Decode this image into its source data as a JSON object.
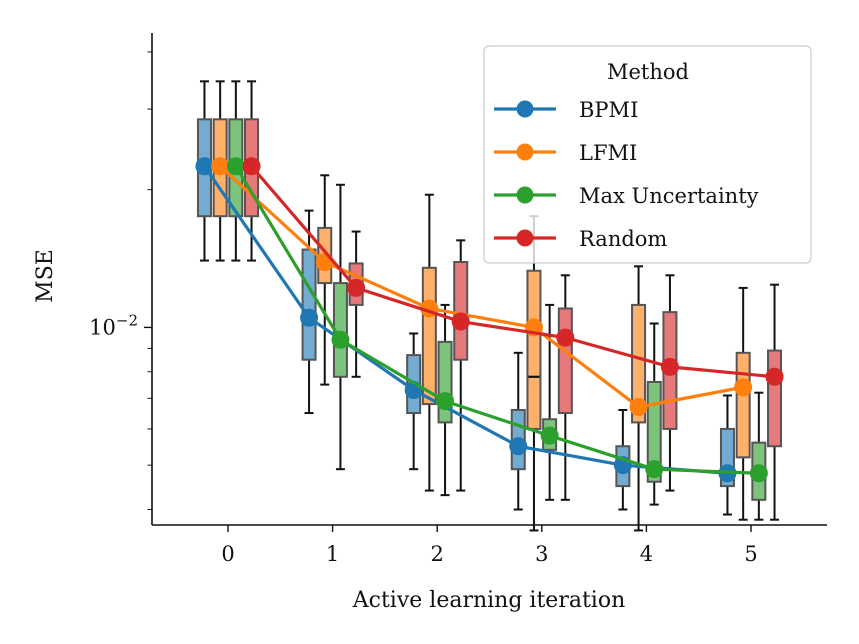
{
  "chart_data": {
    "type": "box",
    "title": "",
    "xlabel": "Active learning iteration",
    "ylabel": "MSE",
    "yscale": "log",
    "ylim": [
      0.0037,
      0.044
    ],
    "x": [
      0,
      1,
      2,
      3,
      4,
      5
    ],
    "x_tick_labels": [
      "0",
      "1",
      "2",
      "3",
      "4",
      "5"
    ],
    "y_tick_label": "10^-2",
    "y_tick_value": 0.01,
    "grid": false,
    "legend": {
      "title": "Method",
      "placement": "top-right"
    },
    "series": [
      {
        "name": "BPMI",
        "color": "#1f77b4",
        "mean": [
          0.0225,
          0.0105,
          0.0073,
          0.0055,
          0.005,
          0.0048
        ],
        "box": [
          {
            "q1": 0.0175,
            "median": 0.0225,
            "q3": 0.0285,
            "whisker_low": 0.014,
            "whisker_high": 0.0345
          },
          {
            "q1": 0.0085,
            "median": 0.0104,
            "q3": 0.0148,
            "whisker_low": 0.0065,
            "whisker_high": 0.018
          },
          {
            "q1": 0.0065,
            "median": 0.0074,
            "q3": 0.0087,
            "whisker_low": 0.0049,
            "whisker_high": 0.0097
          },
          {
            "q1": 0.0049,
            "median": 0.0056,
            "q3": 0.0066,
            "whisker_low": 0.004,
            "whisker_high": 0.0088
          },
          {
            "q1": 0.0045,
            "median": 0.005,
            "q3": 0.0055,
            "whisker_low": 0.004,
            "whisker_high": 0.0066
          },
          {
            "q1": 0.0045,
            "median": 0.0048,
            "q3": 0.006,
            "whisker_low": 0.0039,
            "whisker_high": 0.0071
          }
        ]
      },
      {
        "name": "LFMI",
        "color": "#ff7f0e",
        "mean": [
          0.0225,
          0.0139,
          0.011,
          0.01,
          0.0067,
          0.0074
        ],
        "box": [
          {
            "q1": 0.0175,
            "median": 0.0225,
            "q3": 0.0285,
            "whisker_low": 0.014,
            "whisker_high": 0.0345
          },
          {
            "q1": 0.0125,
            "median": 0.014,
            "q3": 0.0165,
            "whisker_low": 0.0075,
            "whisker_high": 0.0215
          },
          {
            "q1": 0.0068,
            "median": 0.011,
            "q3": 0.0135,
            "whisker_low": 0.0044,
            "whisker_high": 0.0195
          },
          {
            "q1": 0.006,
            "median": 0.0078,
            "q3": 0.0133,
            "whisker_low": 0.0036,
            "whisker_high": 0.0175
          },
          {
            "q1": 0.0062,
            "median": 0.0067,
            "q3": 0.0112,
            "whisker_low": 0.0036,
            "whisker_high": 0.0136
          },
          {
            "q1": 0.0052,
            "median": 0.0074,
            "q3": 0.0088,
            "whisker_low": 0.0038,
            "whisker_high": 0.0122
          }
        ]
      },
      {
        "name": "Max Uncertainty",
        "color": "#2ca02c",
        "mean": [
          0.0225,
          0.0094,
          0.0069,
          0.0058,
          0.0049,
          0.0048
        ],
        "box": [
          {
            "q1": 0.0175,
            "median": 0.0225,
            "q3": 0.0285,
            "whisker_low": 0.014,
            "whisker_high": 0.0345
          },
          {
            "q1": 0.0078,
            "median": 0.0094,
            "q3": 0.0125,
            "whisker_low": 0.0049,
            "whisker_high": 0.0205
          },
          {
            "q1": 0.0062,
            "median": 0.0069,
            "q3": 0.0093,
            "whisker_low": 0.0043,
            "whisker_high": 0.0112
          },
          {
            "q1": 0.0054,
            "median": 0.0058,
            "q3": 0.0063,
            "whisker_low": 0.0042,
            "whisker_high": 0.0112
          },
          {
            "q1": 0.0046,
            "median": 0.0049,
            "q3": 0.0076,
            "whisker_low": 0.0041,
            "whisker_high": 0.0102
          },
          {
            "q1": 0.0042,
            "median": 0.0048,
            "q3": 0.0056,
            "whisker_low": 0.0038,
            "whisker_high": 0.0072
          }
        ]
      },
      {
        "name": "Random",
        "color": "#d62728",
        "mean": [
          0.0225,
          0.0122,
          0.0103,
          0.0095,
          0.0082,
          0.0078
        ],
        "box": [
          {
            "q1": 0.0175,
            "median": 0.0225,
            "q3": 0.0285,
            "whisker_low": 0.014,
            "whisker_high": 0.0345
          },
          {
            "q1": 0.0112,
            "median": 0.0123,
            "q3": 0.0138,
            "whisker_low": 0.0078,
            "whisker_high": 0.0162
          },
          {
            "q1": 0.0085,
            "median": 0.0103,
            "q3": 0.0139,
            "whisker_low": 0.0044,
            "whisker_high": 0.0155
          },
          {
            "q1": 0.0065,
            "median": 0.0095,
            "q3": 0.011,
            "whisker_low": 0.0042,
            "whisker_high": 0.013
          },
          {
            "q1": 0.006,
            "median": 0.0082,
            "q3": 0.0108,
            "whisker_low": 0.0044,
            "whisker_high": 0.013
          },
          {
            "q1": 0.0055,
            "median": 0.0078,
            "q3": 0.0089,
            "whisker_low": 0.0038,
            "whisker_high": 0.0124
          }
        ]
      }
    ]
  }
}
